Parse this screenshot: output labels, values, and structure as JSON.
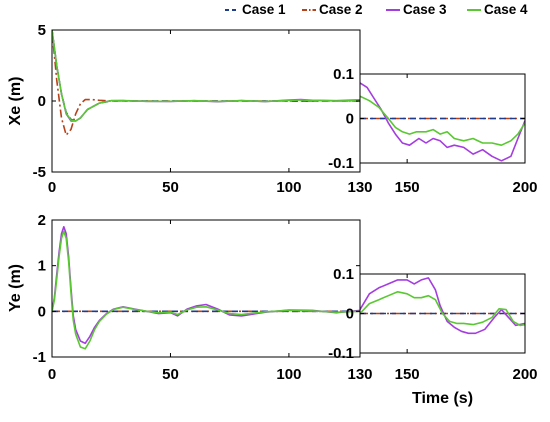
{
  "legend": [
    {
      "name": "Case 1",
      "color": "#1f3c8c",
      "dash": "6,4"
    },
    {
      "name": "Case 2",
      "color": "#b5421a",
      "dash": "8,3,2,3"
    },
    {
      "name": "Case 3",
      "color": "#a43de0",
      "dash": ""
    },
    {
      "name": "Case 4",
      "color": "#5ac832",
      "dash": ""
    }
  ],
  "chart_data": [
    {
      "type": "line",
      "title": "",
      "xlabel": "",
      "ylabel": "Xe (m)",
      "xlim": [
        0,
        130
      ],
      "ylim": [
        -5,
        5
      ],
      "xticks": [
        0,
        50,
        100
      ],
      "yticks": [
        -5,
        0,
        5
      ],
      "grid": false,
      "legend": "top-right",
      "series": [
        {
          "name": "Case 1",
          "x": [
            0,
            2,
            4,
            6,
            8,
            10,
            12,
            15,
            20,
            25,
            30,
            50,
            80,
            100,
            130
          ],
          "y": [
            5,
            2.5,
            0.5,
            -0.8,
            -1.3,
            -1.4,
            -1.2,
            -0.6,
            -0.15,
            0,
            0,
            0,
            0,
            0,
            0
          ]
        },
        {
          "name": "Case 2",
          "x": [
            0,
            2,
            4,
            6,
            8,
            10,
            12,
            14,
            17,
            20,
            25,
            30,
            50,
            80,
            100,
            130
          ],
          "y": [
            5,
            1.5,
            -1.2,
            -2.4,
            -2.0,
            -0.9,
            -0.2,
            0.1,
            0.1,
            0.05,
            0,
            0,
            0,
            0,
            0,
            0
          ]
        },
        {
          "name": "Case 3",
          "x": [
            0,
            2,
            4,
            6,
            8,
            10,
            12,
            15,
            20,
            25,
            30,
            40,
            50,
            60,
            70,
            80,
            90,
            100,
            105,
            110,
            120,
            130
          ],
          "y": [
            5,
            2.5,
            0.5,
            -0.9,
            -1.4,
            -1.4,
            -1.2,
            -0.6,
            -0.15,
            0.02,
            0.03,
            -0.02,
            -0.03,
            0.02,
            -0.05,
            0.03,
            -0.04,
            0.06,
            0.1,
            0.05,
            0.02,
            0.08
          ]
        },
        {
          "name": "Case 4",
          "x": [
            0,
            2,
            4,
            6,
            8,
            10,
            12,
            15,
            20,
            25,
            30,
            40,
            50,
            60,
            70,
            80,
            90,
            100,
            105,
            110,
            120,
            130
          ],
          "y": [
            5,
            2.5,
            0.5,
            -0.85,
            -1.35,
            -1.4,
            -1.2,
            -0.6,
            -0.15,
            0.02,
            0.02,
            -0.02,
            -0.02,
            0.02,
            -0.03,
            0.02,
            -0.03,
            0.04,
            0.07,
            0.04,
            0.01,
            0.02
          ]
        }
      ]
    },
    {
      "type": "line",
      "title": "",
      "xlabel": "",
      "ylabel": "",
      "xlim": [
        130,
        200
      ],
      "ylim": [
        -0.1,
        0.1
      ],
      "xticks": [
        130,
        150,
        200
      ],
      "yticks": [
        -0.1,
        0,
        0.1
      ],
      "grid": false,
      "series": [
        {
          "name": "Case 1",
          "x": [
            130,
            200
          ],
          "y": [
            0,
            0
          ]
        },
        {
          "name": "Case 2",
          "x": [
            130,
            200
          ],
          "y": [
            0,
            0
          ]
        },
        {
          "name": "Case 3",
          "x": [
            130,
            133,
            136,
            139,
            142,
            145,
            148,
            151,
            155,
            158,
            161,
            164,
            167,
            170,
            174,
            178,
            182,
            186,
            190,
            194,
            197,
            200
          ],
          "y": [
            0.08,
            0.07,
            0.045,
            0.02,
            -0.01,
            -0.035,
            -0.055,
            -0.06,
            -0.045,
            -0.055,
            -0.045,
            -0.05,
            -0.065,
            -0.06,
            -0.065,
            -0.08,
            -0.07,
            -0.085,
            -0.095,
            -0.085,
            -0.045,
            -0.005
          ]
        },
        {
          "name": "Case 4",
          "x": [
            130,
            134,
            138,
            142,
            145,
            148,
            151,
            154,
            158,
            161,
            164,
            167,
            170,
            174,
            178,
            182,
            186,
            190,
            194,
            197,
            200
          ],
          "y": [
            0.05,
            0.04,
            0.025,
            0.0,
            -0.02,
            -0.03,
            -0.035,
            -0.03,
            -0.03,
            -0.025,
            -0.035,
            -0.03,
            -0.045,
            -0.05,
            -0.045,
            -0.055,
            -0.055,
            -0.06,
            -0.05,
            -0.035,
            -0.01
          ]
        }
      ]
    },
    {
      "type": "line",
      "title": "",
      "xlabel": "",
      "ylabel": "Ye (m)",
      "xlim": [
        0,
        130
      ],
      "ylim": [
        -1,
        2
      ],
      "xticks": [
        0,
        50,
        100
      ],
      "yticks": [
        -1,
        0,
        1,
        2
      ],
      "grid": false,
      "series": [
        {
          "name": "Case 1",
          "x": [
            0,
            130
          ],
          "y": [
            0,
            0
          ]
        },
        {
          "name": "Case 2",
          "x": [
            0,
            130
          ],
          "y": [
            0,
            0
          ]
        },
        {
          "name": "Case 3",
          "x": [
            0,
            1,
            2,
            3,
            4,
            5,
            6,
            7,
            8,
            9,
            10,
            12,
            14,
            16,
            18,
            20,
            23,
            26,
            30,
            35,
            40,
            45,
            50,
            53,
            57,
            61,
            65,
            70,
            75,
            80,
            90,
            100,
            110,
            120,
            130
          ],
          "y": [
            0,
            0.3,
            0.8,
            1.3,
            1.7,
            1.85,
            1.7,
            1.2,
            0.5,
            -0.1,
            -0.4,
            -0.65,
            -0.7,
            -0.55,
            -0.35,
            -0.2,
            -0.05,
            0.05,
            0.1,
            0.05,
            0,
            -0.05,
            -0.03,
            -0.1,
            0.05,
            0.12,
            0.15,
            0.05,
            -0.08,
            -0.1,
            -0.02,
            0.03,
            0.02,
            -0.03,
            0.02
          ]
        },
        {
          "name": "Case 4",
          "x": [
            0,
            1,
            2,
            3,
            4,
            5,
            6,
            7,
            8,
            9,
            10,
            12,
            14,
            16,
            18,
            20,
            23,
            26,
            30,
            35,
            40,
            45,
            50,
            53,
            57,
            61,
            65,
            70,
            75,
            80,
            90,
            100,
            110,
            120,
            130
          ],
          "y": [
            0,
            0.25,
            0.7,
            1.2,
            1.6,
            1.75,
            1.6,
            1.1,
            0.4,
            -0.2,
            -0.5,
            -0.78,
            -0.82,
            -0.65,
            -0.4,
            -0.22,
            -0.06,
            0.04,
            0.09,
            0.04,
            0,
            -0.03,
            -0.02,
            -0.07,
            0.03,
            0.09,
            0.1,
            0.03,
            -0.05,
            -0.07,
            -0.01,
            0.02,
            0.01,
            -0.02,
            0
          ]
        }
      ]
    },
    {
      "type": "line",
      "title": "",
      "xlabel": "Time (s)",
      "ylabel": "",
      "xlim": [
        130,
        200
      ],
      "ylim": [
        -0.1,
        0.1
      ],
      "xticks": [
        130,
        150,
        200
      ],
      "yticks": [
        -0.1,
        0,
        0.1
      ],
      "grid": false,
      "series": [
        {
          "name": "Case 1",
          "x": [
            130,
            200
          ],
          "y": [
            0,
            0
          ]
        },
        {
          "name": "Case 2",
          "x": [
            130,
            200
          ],
          "y": [
            0,
            0
          ]
        },
        {
          "name": "Case 3",
          "x": [
            130,
            134,
            138,
            142,
            146,
            150,
            153,
            156,
            159,
            162,
            164,
            167,
            170,
            173,
            176,
            179,
            183,
            187,
            190,
            193,
            196,
            200
          ],
          "y": [
            0.01,
            0.05,
            0.065,
            0.075,
            0.085,
            0.085,
            0.075,
            0.085,
            0.09,
            0.06,
            0.02,
            -0.02,
            -0.035,
            -0.045,
            -0.05,
            -0.05,
            -0.04,
            -0.01,
            0.01,
            -0.01,
            -0.03,
            -0.025
          ]
        },
        {
          "name": "Case 4",
          "x": [
            130,
            134,
            138,
            142,
            146,
            150,
            153,
            156,
            159,
            162,
            165,
            168,
            171,
            174,
            178,
            182,
            186,
            189,
            192,
            195,
            198,
            200
          ],
          "y": [
            0.0,
            0.025,
            0.035,
            0.045,
            0.055,
            0.05,
            0.04,
            0.04,
            0.045,
            0.035,
            0.0,
            -0.02,
            -0.025,
            -0.025,
            -0.028,
            -0.022,
            -0.01,
            0.012,
            0.01,
            -0.02,
            -0.03,
            -0.028
          ]
        }
      ]
    }
  ]
}
